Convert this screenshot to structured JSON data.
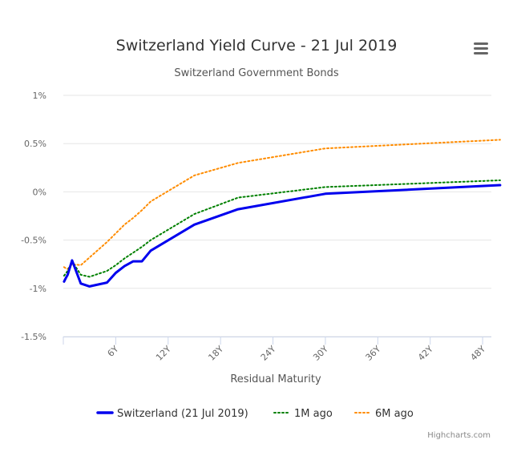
{
  "chart_data": {
    "type": "line",
    "title": "Switzerland Yield Curve - 21 Jul 2019",
    "subtitle": "Switzerland Government Bonds",
    "xlabel": "Residual Maturity",
    "ylabel": "",
    "xlim": [
      0,
      49
    ],
    "ylim": [
      -1.5,
      1
    ],
    "x_ticks": [
      6,
      12,
      18,
      24,
      30,
      36,
      42,
      48
    ],
    "x_tick_labels": [
      "6Y",
      "12Y",
      "18Y",
      "24Y",
      "30Y",
      "36Y",
      "42Y",
      "48Y"
    ],
    "y_ticks": [
      -1.5,
      -1,
      -0.5,
      0,
      0.5,
      1
    ],
    "y_tick_labels": [
      "-1.5%",
      "-1%",
      "-0.5%",
      "0%",
      "0.5%",
      "1%"
    ],
    "legend_position": "bottom",
    "credits": "Highcharts.com",
    "series": [
      {
        "name": "Switzerland (21 Jul 2019)",
        "color": "#0000ee",
        "style": "solid",
        "x": [
          0.08,
          0.25,
          0.5,
          1,
          2,
          3,
          5,
          6,
          7,
          8,
          9,
          10,
          15,
          20,
          30,
          50
        ],
        "values": [
          -0.93,
          -0.9,
          -0.86,
          -0.71,
          -0.95,
          -0.98,
          -0.94,
          -0.84,
          -0.77,
          -0.72,
          -0.72,
          -0.61,
          -0.34,
          -0.18,
          -0.02,
          0.07
        ]
      },
      {
        "name": "1M ago",
        "color": "#008000",
        "style": "dotted",
        "x": [
          0.08,
          0.25,
          0.5,
          1,
          2,
          3,
          5,
          6,
          7,
          8,
          9,
          10,
          15,
          20,
          30,
          50
        ],
        "values": [
          -0.87,
          -0.85,
          -0.82,
          -0.72,
          -0.86,
          -0.88,
          -0.82,
          -0.76,
          -0.69,
          -0.63,
          -0.57,
          -0.5,
          -0.23,
          -0.06,
          0.05,
          0.12
        ]
      },
      {
        "name": "6M ago",
        "color": "#ff8c00",
        "style": "dotted",
        "x": [
          0.08,
          0.25,
          0.5,
          1,
          2,
          3,
          5,
          6,
          7,
          8,
          9,
          10,
          15,
          20,
          30,
          50
        ],
        "values": [
          -0.78,
          -0.79,
          -0.8,
          -0.75,
          -0.76,
          -0.68,
          -0.52,
          -0.43,
          -0.34,
          -0.27,
          -0.19,
          -0.1,
          0.17,
          0.3,
          0.45,
          0.54
        ]
      }
    ]
  }
}
